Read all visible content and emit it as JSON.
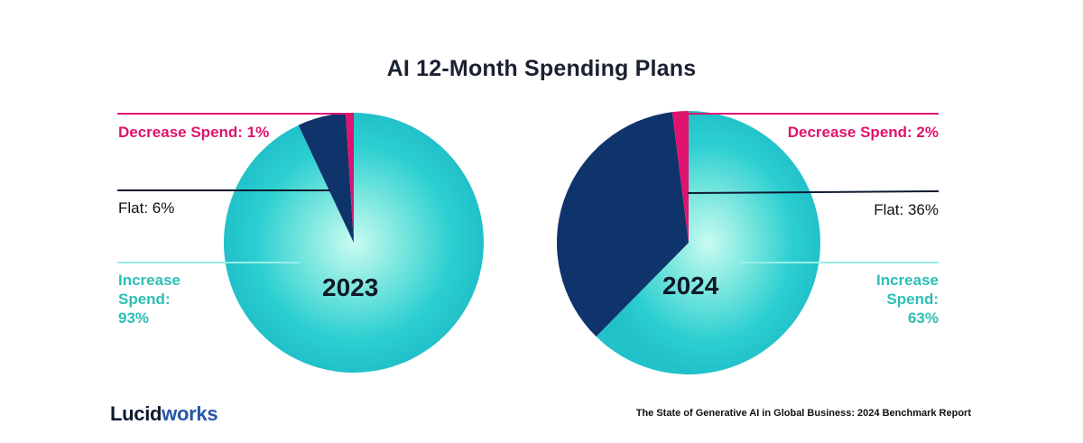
{
  "chart_data": [
    {
      "type": "pie",
      "title": "AI 12-Month Spending Plans",
      "year": "2023",
      "slices": [
        {
          "name": "Decrease Spend",
          "value": 1,
          "label": "Decrease Spend: 1%",
          "color": "#e0136f"
        },
        {
          "name": "Flat",
          "value": 6,
          "label": "Flat: 6%",
          "color": "#0f336b"
        },
        {
          "name": "Increase Spend",
          "value": 93,
          "label": "Increase Spend: 93%",
          "color": "#25c7cc"
        }
      ]
    },
    {
      "type": "pie",
      "title": "AI 12-Month Spending Plans",
      "year": "2024",
      "slices": [
        {
          "name": "Decrease Spend",
          "value": 2,
          "label": "Decrease Spend: 2%",
          "color": "#e0136f"
        },
        {
          "name": "Flat",
          "value": 36,
          "label": "Flat: 36%",
          "color": "#0f336b"
        },
        {
          "name": "Increase Spend",
          "value": 63,
          "label": "Increase Spend: 63%",
          "color": "#25c7cc"
        }
      ]
    }
  ],
  "labels": {
    "left": {
      "decrease": "Decrease Spend: 1%",
      "flat": "Flat: 6%",
      "increase_1": "Increase",
      "increase_2": "Spend:",
      "increase_3": "93%"
    },
    "right": {
      "decrease": "Decrease Spend: 2%",
      "flat": "Flat: 36%",
      "increase_1": "Increase",
      "increase_2": "Spend:",
      "increase_3": "63%"
    }
  },
  "page": {
    "title": "AI 12-Month Spending Plans",
    "brand_main": "Lucid",
    "brand_accent": "works",
    "source": "The State of Generative AI in Global Business: 2024 Benchmark Report"
  },
  "colors": {
    "decrease": "#e0136f",
    "flat": "#0f336b",
    "increase": "#25c7cc",
    "increase_label": "#2cbfb6",
    "brand_accent": "#2556a8"
  }
}
